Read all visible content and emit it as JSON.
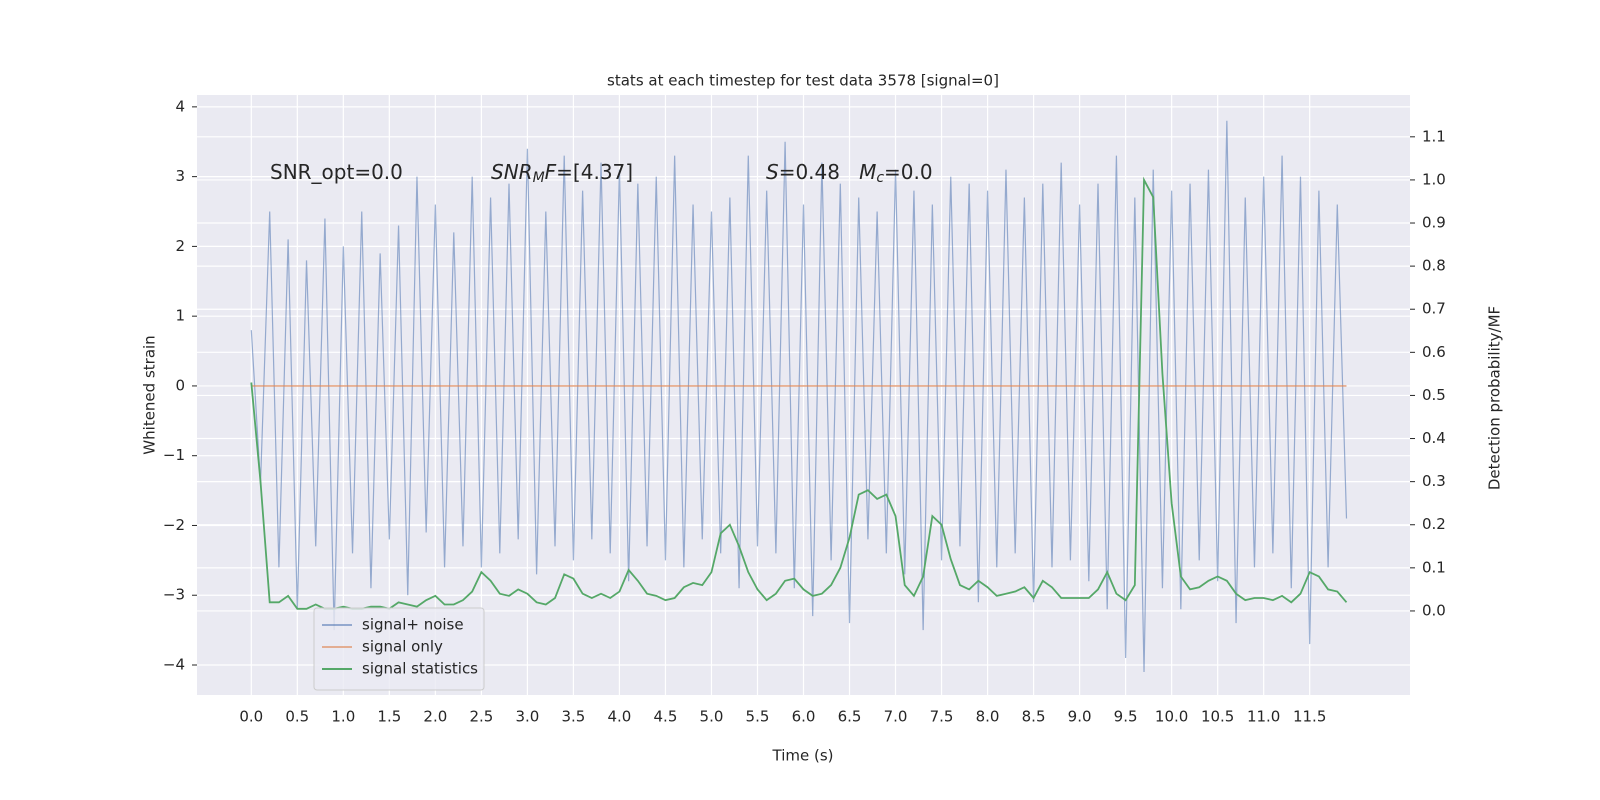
{
  "chart_data": {
    "type": "line",
    "title": "stats at each timestep for test data 3578 [signal=0]",
    "x_label": "Time (s)",
    "y_label": "Whitened strain",
    "y2_label": "Detection probability/MF",
    "annotations": [
      [
        {
          "text": "SNR_opt=0.0",
          "style": "normal"
        }
      ],
      [
        {
          "text": "SNR",
          "style": "italic"
        },
        {
          "text": "M",
          "style": "sub"
        },
        {
          "text": "F",
          "style": "italic"
        },
        {
          "text": "=[4.37]",
          "style": "normal"
        }
      ],
      [
        {
          "text": "S",
          "style": "italic"
        },
        {
          "text": "=0.48   ",
          "style": "normal"
        },
        {
          "text": "M",
          "style": "italic"
        },
        {
          "text": "c",
          "style": "sub"
        },
        {
          "text": "=0.0",
          "style": "normal"
        }
      ]
    ],
    "grid": true,
    "legend": "lower left",
    "xlim": [
      -0.59,
      12.59
    ],
    "ylim": [
      -4.43,
      4.17
    ],
    "y2lim": [
      -0.195,
      1.197
    ],
    "xticks": [
      {
        "value": 0,
        "label": "0.0"
      },
      {
        "value": 0.5,
        "label": "0.5"
      },
      {
        "value": 1,
        "label": "1.0"
      },
      {
        "value": 1.5,
        "label": "1.5"
      },
      {
        "value": 2,
        "label": "2.0"
      },
      {
        "value": 2.5,
        "label": "2.5"
      },
      {
        "value": 3,
        "label": "3.0"
      },
      {
        "value": 3.5,
        "label": "3.5"
      },
      {
        "value": 4,
        "label": "4.0"
      },
      {
        "value": 4.5,
        "label": "4.5"
      },
      {
        "value": 5,
        "label": "5.0"
      },
      {
        "value": 5.5,
        "label": "5.5"
      },
      {
        "value": 6,
        "label": "6.0"
      },
      {
        "value": 6.5,
        "label": "6.5"
      },
      {
        "value": 7,
        "label": "7.0"
      },
      {
        "value": 7.5,
        "label": "7.5"
      },
      {
        "value": 8,
        "label": "8.0"
      },
      {
        "value": 8.5,
        "label": "8.5"
      },
      {
        "value": 9,
        "label": "9.0"
      },
      {
        "value": 9.5,
        "label": "9.5"
      },
      {
        "value": 10,
        "label": "10.0"
      },
      {
        "value": 10.5,
        "label": "10.5"
      },
      {
        "value": 11,
        "label": "11.0"
      },
      {
        "value": 11.5,
        "label": "11.5"
      }
    ],
    "yticks": [
      {
        "value": -4,
        "label": "−4"
      },
      {
        "value": -3,
        "label": "−3"
      },
      {
        "value": -2,
        "label": "−2"
      },
      {
        "value": -1,
        "label": "−1"
      },
      0,
      1,
      2,
      3,
      4
    ],
    "y2ticks": [
      {
        "value": 0,
        "label": "0.0"
      },
      {
        "value": 0.1,
        "label": "0.1"
      },
      {
        "value": 0.2,
        "label": "0.2"
      },
      {
        "value": 0.3,
        "label": "0.3"
      },
      {
        "value": 0.4,
        "label": "0.4"
      },
      {
        "value": 0.5,
        "label": "0.5"
      },
      {
        "value": 0.6,
        "label": "0.6"
      },
      {
        "value": 0.7,
        "label": "0.7"
      },
      {
        "value": 0.8,
        "label": "0.8"
      },
      {
        "value": 0.9,
        "label": "0.9"
      },
      {
        "value": 1,
        "label": "1.0"
      },
      {
        "value": 1.1,
        "label": "1.1"
      }
    ],
    "x": [
      0.0,
      0.1,
      0.2,
      0.3,
      0.4,
      0.5,
      0.6,
      0.7,
      0.8,
      0.9,
      1.0,
      1.1,
      1.2,
      1.3,
      1.4,
      1.5,
      1.6,
      1.7,
      1.8,
      1.9,
      2.0,
      2.1,
      2.2,
      2.3,
      2.4,
      2.5,
      2.6,
      2.7,
      2.8,
      2.9,
      3.0,
      3.1,
      3.2,
      3.3,
      3.4,
      3.5,
      3.6,
      3.7,
      3.8,
      3.9,
      4.0,
      4.1,
      4.2,
      4.3,
      4.4,
      4.5,
      4.6,
      4.7,
      4.8,
      4.9,
      5.0,
      5.1,
      5.2,
      5.3,
      5.4,
      5.5,
      5.6,
      5.7,
      5.8,
      5.9,
      6.0,
      6.1,
      6.2,
      6.3,
      6.4,
      6.5,
      6.6,
      6.7,
      6.8,
      6.9,
      7.0,
      7.1,
      7.2,
      7.3,
      7.4,
      7.5,
      7.6,
      7.7,
      7.8,
      7.9,
      8.0,
      8.1,
      8.2,
      8.3,
      8.4,
      8.5,
      8.6,
      8.7,
      8.8,
      8.9,
      9.0,
      9.1,
      9.2,
      9.3,
      9.4,
      9.5,
      9.6,
      9.7,
      9.8,
      9.9,
      10.0,
      10.1,
      10.2,
      10.3,
      10.4,
      10.5,
      10.6,
      10.7,
      10.8,
      10.9,
      11.0,
      11.1,
      11.2,
      11.3,
      11.4,
      11.5,
      11.6,
      11.7,
      11.8,
      11.9
    ],
    "series": [
      {
        "name": "signal+ noise",
        "color": "#4c72b0",
        "alpha": 0.55,
        "axis": "y",
        "values": [
          0.8,
          -1.4,
          2.5,
          -2.6,
          2.1,
          -3.2,
          1.8,
          -2.3,
          2.4,
          -3.5,
          2.0,
          -2.4,
          2.5,
          -2.9,
          1.9,
          -2.2,
          2.3,
          -3.0,
          3.0,
          -2.1,
          2.6,
          -2.6,
          2.2,
          -2.3,
          3.0,
          -2.6,
          2.7,
          -2.4,
          2.9,
          -2.2,
          3.4,
          -2.7,
          2.5,
          -2.3,
          3.3,
          -2.5,
          2.8,
          -2.2,
          3.2,
          -2.4,
          3.1,
          -2.8,
          2.9,
          -2.3,
          3.0,
          -2.5,
          3.3,
          -2.6,
          2.6,
          -2.2,
          2.5,
          -2.4,
          2.7,
          -2.9,
          3.3,
          -2.3,
          2.8,
          -2.4,
          3.5,
          -2.9,
          2.6,
          -3.3,
          3.2,
          -2.5,
          2.9,
          -3.4,
          2.7,
          -2.2,
          2.5,
          -2.4,
          3.1,
          -2.7,
          2.8,
          -3.5,
          2.6,
          -2.5,
          3.0,
          -2.3,
          2.9,
          -3.1,
          2.8,
          -2.6,
          3.1,
          -2.4,
          2.7,
          -3.1,
          2.9,
          -2.6,
          3.2,
          -2.5,
          2.6,
          -2.8,
          2.9,
          -3.2,
          3.3,
          -3.9,
          2.7,
          -4.1,
          3.1,
          -2.9,
          2.8,
          -3.2,
          2.9,
          -2.5,
          3.1,
          -2.8,
          3.8,
          -3.4,
          2.7,
          -2.6,
          3.0,
          -2.4,
          3.3,
          -2.9,
          3.0,
          -3.7,
          2.8,
          -2.6,
          2.6,
          -1.9
        ]
      },
      {
        "name": "signal only",
        "color": "#dd8452",
        "alpha": 0.6,
        "axis": "y",
        "values": [
          0,
          0,
          0,
          0,
          0,
          0,
          0,
          0,
          0,
          0,
          0,
          0,
          0,
          0,
          0,
          0,
          0,
          0,
          0,
          0,
          0,
          0,
          0,
          0,
          0,
          0,
          0,
          0,
          0,
          0,
          0,
          0,
          0,
          0,
          0,
          0,
          0,
          0,
          0,
          0,
          0,
          0,
          0,
          0,
          0,
          0,
          0,
          0,
          0,
          0,
          0,
          0,
          0,
          0,
          0,
          0,
          0,
          0,
          0,
          0,
          0,
          0,
          0,
          0,
          0,
          0,
          0,
          0,
          0,
          0,
          0,
          0,
          0,
          0,
          0,
          0,
          0,
          0,
          0,
          0,
          0,
          0,
          0,
          0,
          0,
          0,
          0,
          0,
          0,
          0,
          0,
          0,
          0,
          0,
          0,
          0,
          0,
          0,
          0,
          0,
          0,
          0,
          0,
          0,
          0,
          0,
          0,
          0,
          0,
          0,
          0,
          0,
          0,
          0,
          0,
          0,
          0,
          0,
          0,
          0
        ]
      },
      {
        "name": "signal statistics",
        "color": "#55a868",
        "alpha": 1,
        "axis": "y2",
        "values": [
          0.53,
          0.3,
          0.02,
          0.02,
          0.035,
          0.005,
          0.005,
          0.015,
          0.005,
          0.005,
          0.01,
          0.005,
          0.005,
          0.01,
          0.01,
          0.005,
          0.02,
          0.015,
          0.01,
          0.025,
          0.035,
          0.015,
          0.015,
          0.025,
          0.045,
          0.09,
          0.07,
          0.04,
          0.035,
          0.05,
          0.04,
          0.02,
          0.015,
          0.03,
          0.085,
          0.075,
          0.04,
          0.03,
          0.04,
          0.03,
          0.045,
          0.095,
          0.07,
          0.04,
          0.035,
          0.025,
          0.03,
          0.055,
          0.065,
          0.06,
          0.09,
          0.18,
          0.2,
          0.15,
          0.09,
          0.05,
          0.025,
          0.04,
          0.07,
          0.075,
          0.05,
          0.035,
          0.04,
          0.06,
          0.1,
          0.17,
          0.27,
          0.28,
          0.26,
          0.27,
          0.22,
          0.06,
          0.035,
          0.08,
          0.22,
          0.2,
          0.12,
          0.06,
          0.05,
          0.07,
          0.055,
          0.035,
          0.04,
          0.045,
          0.055,
          0.03,
          0.07,
          0.055,
          0.03,
          0.03,
          0.03,
          0.03,
          0.05,
          0.09,
          0.04,
          0.025,
          0.06,
          1.0,
          0.96,
          0.55,
          0.25,
          0.08,
          0.05,
          0.055,
          0.07,
          0.08,
          0.07,
          0.04,
          0.025,
          0.03,
          0.03,
          0.025,
          0.035,
          0.02,
          0.04,
          0.09,
          0.08,
          0.05,
          0.045,
          0.02
        ]
      }
    ]
  }
}
